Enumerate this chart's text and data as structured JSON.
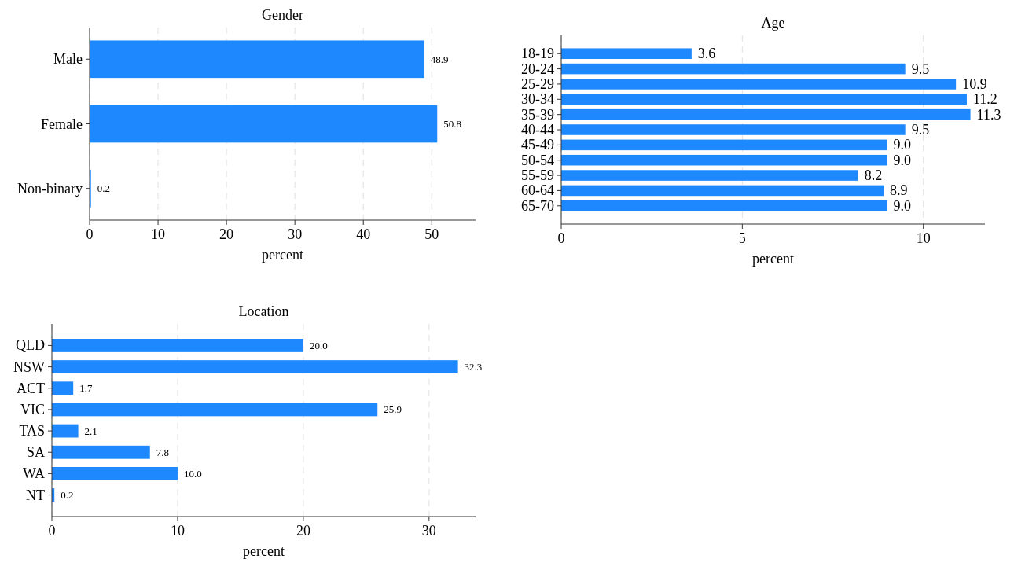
{
  "chart_data": [
    {
      "type": "bar",
      "orientation": "horizontal",
      "title": "Gender",
      "xlabel": "percent",
      "categories": [
        "Male",
        "Female",
        "Non-binary"
      ],
      "values": [
        48.9,
        50.8,
        0.2
      ],
      "value_labels": [
        "48.9",
        "50.8",
        "0.2"
      ],
      "color": "#1e88ff",
      "xlim": [
        0,
        56.4
      ],
      "xticks": [
        0,
        10,
        20,
        30,
        40,
        50
      ],
      "grid": "x"
    },
    {
      "type": "bar",
      "orientation": "horizontal",
      "title": "Age",
      "xlabel": "percent",
      "categories": [
        "18-19",
        "20-24",
        "25-29",
        "30-34",
        "35-39",
        "40-44",
        "45-49",
        "50-54",
        "55-59",
        "60-64",
        "65-70"
      ],
      "values": [
        3.6,
        9.5,
        10.9,
        11.2,
        11.3,
        9.5,
        9.0,
        9.0,
        8.2,
        8.9,
        9.0
      ],
      "value_labels": [
        "3.6",
        "9.5",
        "10.9",
        "11.2",
        "11.3",
        "9.5",
        "9.0",
        "9.0",
        "8.2",
        "8.9",
        "9.0"
      ],
      "color": "#1e88ff",
      "xlim": [
        0,
        11.7
      ],
      "xticks": [
        0,
        5,
        10
      ],
      "grid": "x"
    },
    {
      "type": "bar",
      "orientation": "horizontal",
      "title": "Location",
      "xlabel": "percent",
      "categories": [
        "QLD",
        "NSW",
        "ACT",
        "VIC",
        "TAS",
        "SA",
        "WA",
        "NT"
      ],
      "values": [
        20.0,
        32.3,
        1.7,
        25.9,
        2.1,
        7.8,
        10.0,
        0.2
      ],
      "value_labels": [
        "20.0",
        "32.3",
        "1.7",
        "25.9",
        "2.1",
        "7.8",
        "10.0",
        "0.2"
      ],
      "color": "#1e88ff",
      "xlim": [
        0,
        33.7
      ],
      "xticks": [
        0,
        10,
        20,
        30
      ],
      "grid": "x"
    }
  ]
}
